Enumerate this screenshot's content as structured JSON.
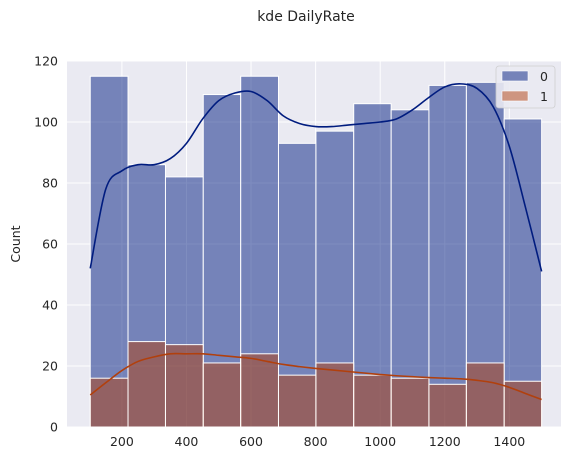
{
  "chart_data": {
    "type": "bar",
    "title": "kde DailyRate",
    "xlabel": "",
    "ylabel": "Count",
    "xlim": [
      30,
      1560
    ],
    "ylim": [
      0,
      120
    ],
    "xticks": [
      200,
      400,
      600,
      800,
      1000,
      1200,
      1400
    ],
    "yticks": [
      0,
      20,
      40,
      60,
      80,
      100,
      120
    ],
    "grid": true,
    "legend_position": "top-right",
    "bin_edges": [
      102,
      219,
      335,
      452,
      568,
      685,
      801,
      918,
      1034,
      1151,
      1267,
      1384,
      1500
    ],
    "series": [
      {
        "name": "0",
        "color": "#001c7f",
        "values": [
          115,
          86,
          82,
          109,
          115,
          93,
          97,
          106,
          104,
          112,
          113,
          101
        ],
        "kde": [
          [
            102,
            52
          ],
          [
            150,
            78
          ],
          [
            200,
            84
          ],
          [
            250,
            86
          ],
          [
            300,
            86
          ],
          [
            350,
            88
          ],
          [
            400,
            93
          ],
          [
            450,
            101
          ],
          [
            500,
            107
          ],
          [
            550,
            109.5
          ],
          [
            600,
            110
          ],
          [
            650,
            107
          ],
          [
            700,
            102
          ],
          [
            750,
            99.5
          ],
          [
            800,
            98.5
          ],
          [
            850,
            98.5
          ],
          [
            900,
            99
          ],
          [
            950,
            99.5
          ],
          [
            1000,
            100
          ],
          [
            1050,
            101
          ],
          [
            1100,
            104
          ],
          [
            1150,
            108
          ],
          [
            1200,
            111.5
          ],
          [
            1250,
            112.5
          ],
          [
            1300,
            111
          ],
          [
            1350,
            105
          ],
          [
            1400,
            92
          ],
          [
            1450,
            72
          ],
          [
            1500,
            51
          ]
        ]
      },
      {
        "name": "1",
        "color": "#b1400d",
        "values": [
          16,
          28,
          27,
          21,
          24,
          17,
          21,
          17,
          16,
          14,
          21,
          15
        ],
        "kde": [
          [
            102,
            10.5
          ],
          [
            150,
            14.5
          ],
          [
            200,
            18.5
          ],
          [
            250,
            21.5
          ],
          [
            300,
            23
          ],
          [
            350,
            24
          ],
          [
            400,
            24
          ],
          [
            450,
            24
          ],
          [
            500,
            23.5
          ],
          [
            550,
            23
          ],
          [
            600,
            22.5
          ],
          [
            650,
            21.5
          ],
          [
            700,
            20.5
          ],
          [
            750,
            19.8
          ],
          [
            800,
            19.2
          ],
          [
            850,
            18.7
          ],
          [
            900,
            18.2
          ],
          [
            950,
            17.7
          ],
          [
            1000,
            17.2
          ],
          [
            1050,
            16.8
          ],
          [
            1100,
            16.5
          ],
          [
            1150,
            16.2
          ],
          [
            1200,
            16
          ],
          [
            1250,
            15.8
          ],
          [
            1300,
            15.3
          ],
          [
            1350,
            14.5
          ],
          [
            1400,
            13
          ],
          [
            1450,
            11
          ],
          [
            1500,
            9
          ]
        ]
      }
    ]
  }
}
